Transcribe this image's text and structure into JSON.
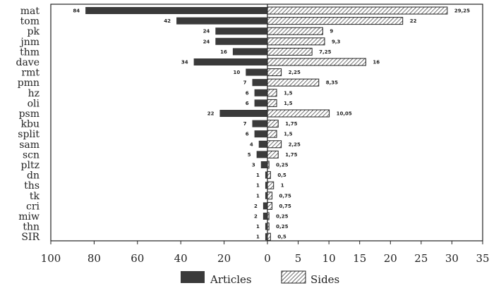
{
  "chart_data": {
    "type": "bar",
    "categories": [
      "mat",
      "tom",
      "pk",
      "jnm",
      "thm",
      "dave",
      "rmt",
      "pmn",
      "hz",
      "oli",
      "psm",
      "kbu",
      "split",
      "sam",
      "scn",
      "pltz",
      "dn",
      "ths",
      "tk",
      "cri",
      "miw",
      "thn",
      "SIR"
    ],
    "series": [
      {
        "name": "Articles",
        "values": [
          84,
          42,
          24,
          24,
          16,
          34,
          10,
          7,
          6,
          6,
          22,
          7,
          6,
          4,
          5,
          3,
          1,
          1,
          1,
          2,
          2,
          1,
          1
        ],
        "data_labels": [
          "84",
          "42",
          "24",
          "24",
          "16",
          "34",
          "10",
          "7",
          "6",
          "6",
          "22",
          "7",
          "6",
          "4",
          "5",
          "3",
          "1",
          "1",
          "1",
          "2",
          "2",
          "1",
          "1"
        ]
      },
      {
        "name": "Sides",
        "values": [
          29.25,
          22,
          9,
          9.3,
          7.25,
          16,
          2.25,
          8.35,
          1.5,
          1.5,
          10.05,
          1.75,
          1.5,
          2.25,
          1.75,
          0.25,
          0.5,
          1,
          0.75,
          0.75,
          0.25,
          0.25,
          0.5
        ],
        "data_labels": [
          "29,25",
          "22",
          "9",
          "9,3",
          "7,25",
          "16",
          "2,25",
          "8,35",
          "1,5",
          "1,5",
          "10,05",
          "1,75",
          "1,5",
          "2,25",
          "1,75",
          "0,25",
          "0,5",
          "1",
          "0,75",
          "0,75",
          "0,25",
          "0,25",
          "0,5"
        ]
      }
    ],
    "left_axis": {
      "ticks": [
        "100",
        "80",
        "60",
        "40",
        "20",
        "0"
      ],
      "range": [
        0,
        100
      ]
    },
    "right_axis": {
      "ticks": [
        "5",
        "10",
        "15",
        "20",
        "25",
        "30",
        "35"
      ],
      "range": [
        0,
        35
      ]
    },
    "legend": {
      "placement": "bottom-center",
      "items": [
        "Articles",
        "Sides"
      ]
    },
    "colors": {
      "articles_fill": "#3a3a3a",
      "sides_hatch": "#222222",
      "frame": "#222222"
    }
  }
}
